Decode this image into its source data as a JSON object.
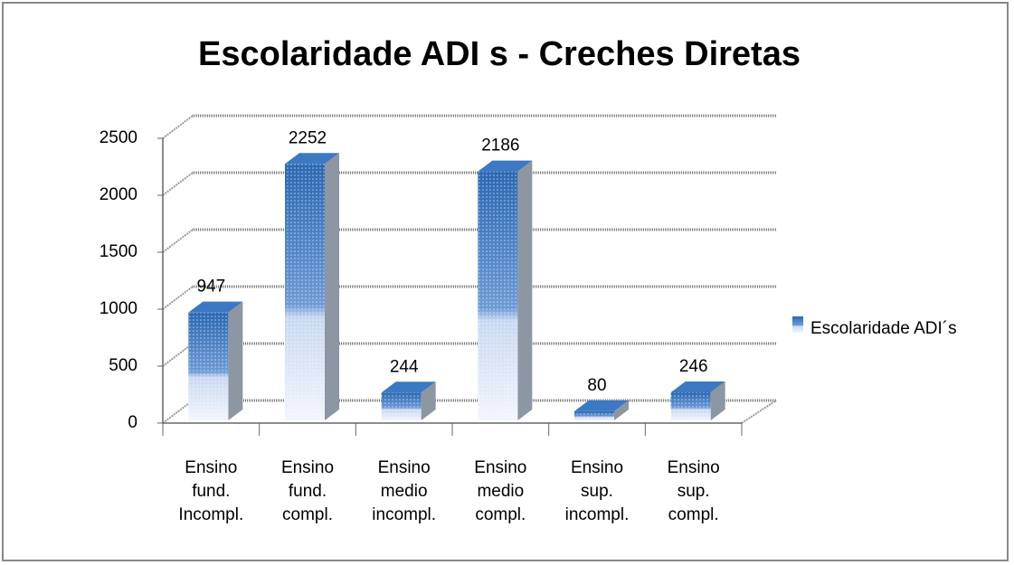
{
  "chart_data": {
    "type": "bar3d",
    "title": "Escolaridade ADI s - Creches Diretas",
    "categories": [
      "Ensino fund. Incompl.",
      "Ensino fund. compl.",
      "Ensino medio incompl.",
      "Ensino medio compl.",
      "Ensino sup. incompl.",
      "Ensino sup. compl."
    ],
    "series": [
      {
        "name": "Escolaridade ADI´s",
        "color": "#3d78c2",
        "values": [
          947,
          2252,
          244,
          2186,
          80,
          246
        ]
      }
    ],
    "ylim": [
      0,
      2500
    ],
    "yticks": [
      0,
      500,
      1000,
      1500,
      2000,
      2500
    ],
    "grid": true
  }
}
